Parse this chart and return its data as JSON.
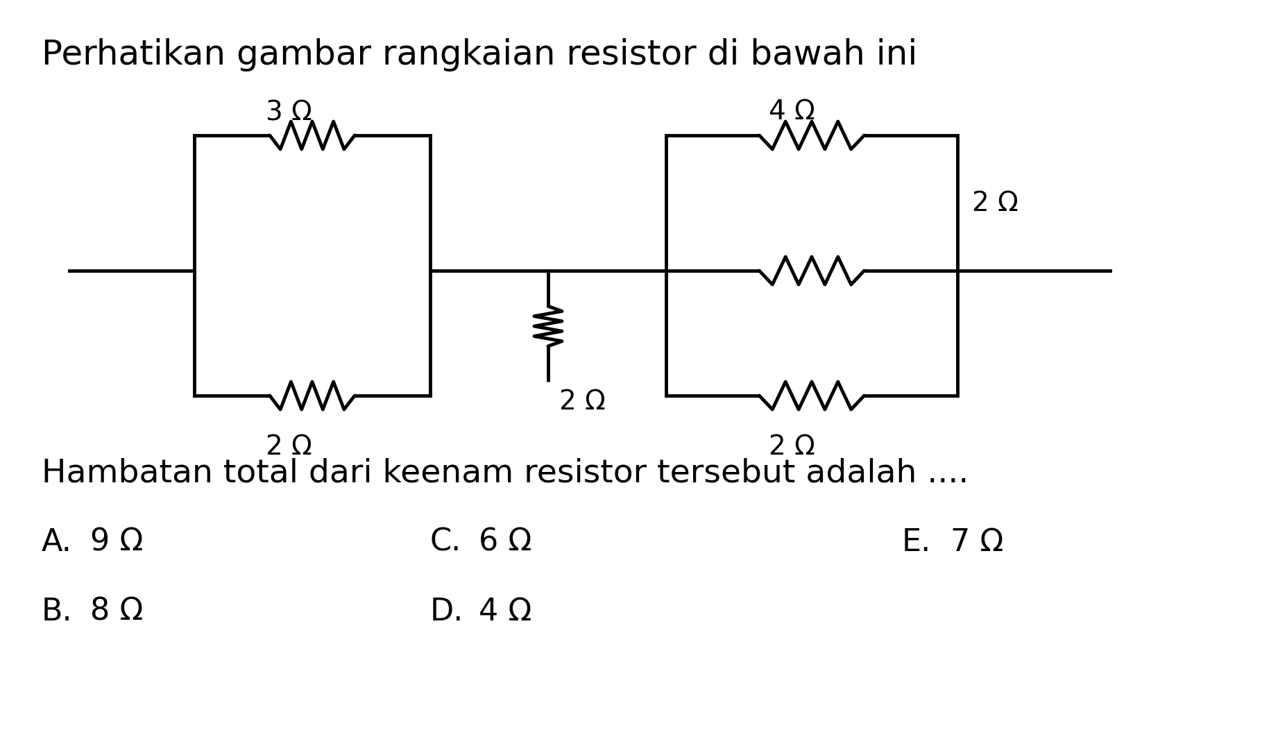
{
  "title": "Perhatikan gambar rangkaian resistor di bawah ini",
  "question": "Hambatan total dari keenam resistor tersebut adalah ....",
  "options": [
    {
      "label": "A.",
      "value": "9 Ω"
    },
    {
      "label": "B.",
      "value": "8 Ω"
    },
    {
      "label": "C.",
      "value": "6 Ω"
    },
    {
      "label": "D.",
      "value": "4 Ω"
    },
    {
      "label": "E.",
      "value": "7 Ω"
    }
  ],
  "bg_color": "#ffffff",
  "line_color": "#000000",
  "title_fontsize": 36,
  "label_fontsize": 28,
  "question_fontsize": 34,
  "option_fontsize": 32
}
